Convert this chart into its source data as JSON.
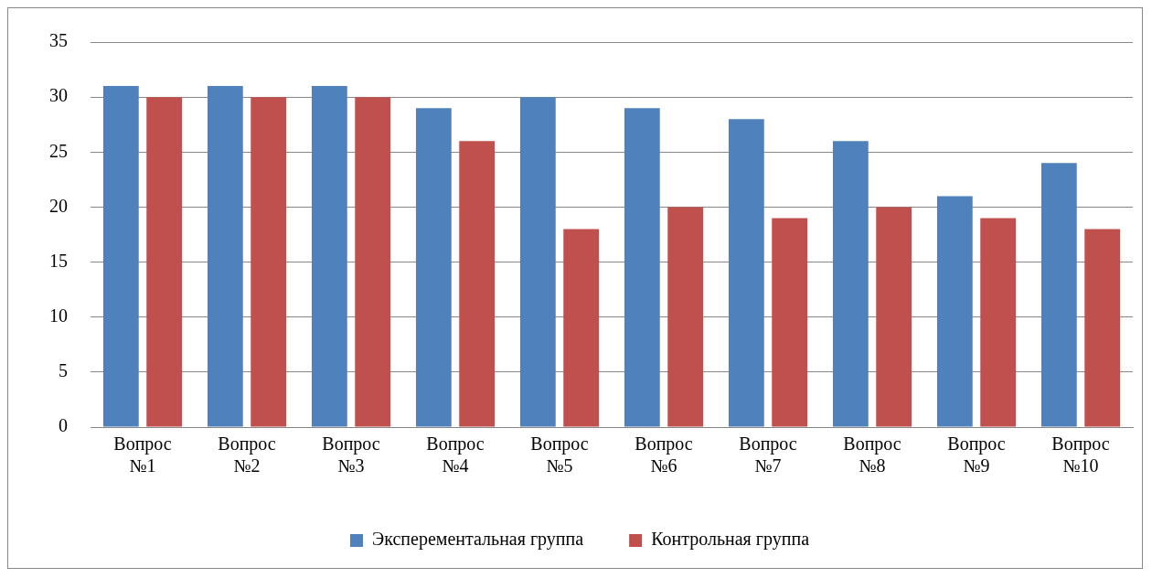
{
  "chart_data": {
    "type": "bar",
    "categories": [
      "Вопрос №1",
      "Вопрос №2",
      "Вопрос №3",
      "Вопрос №4",
      "Вопрос №5",
      "Вопрос №6",
      "Вопрос №7",
      "Вопрос №8",
      "Вопрос №9",
      "Вопрос №10"
    ],
    "series": [
      {
        "name": "Эксперементальная группа",
        "color": "#4f81bd",
        "values": [
          31,
          31,
          31,
          29,
          30,
          29,
          28,
          26,
          21,
          24
        ]
      },
      {
        "name": "Контрольная группа",
        "color": "#c0504d",
        "values": [
          30,
          30,
          30,
          26,
          18,
          20,
          19,
          20,
          19,
          18
        ]
      }
    ],
    "ylim": [
      0,
      35
    ],
    "yticks": [
      0,
      5,
      10,
      15,
      20,
      25,
      30,
      35
    ],
    "grid": "y",
    "legend": "bottom"
  }
}
